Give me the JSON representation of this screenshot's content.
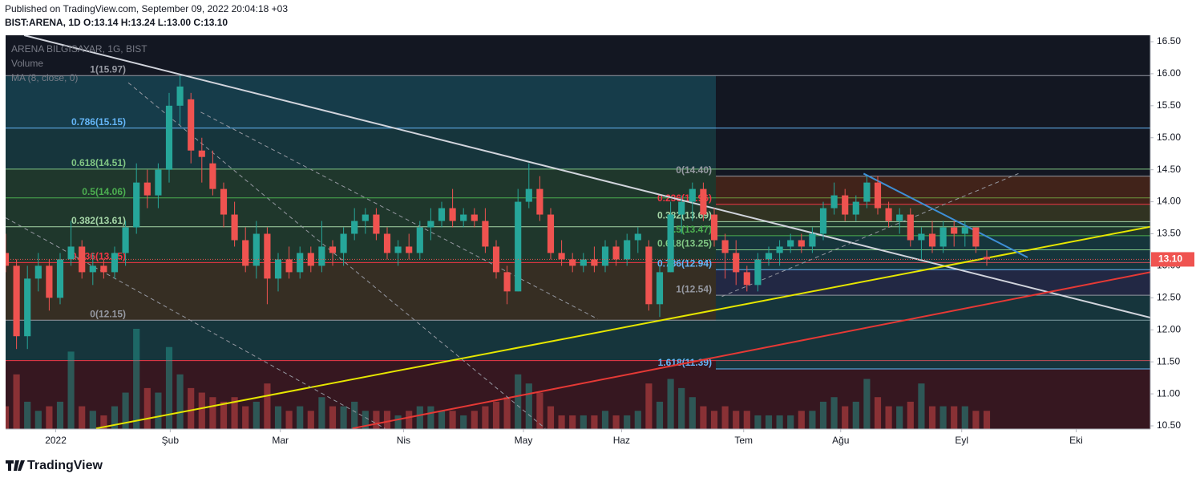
{
  "header": {
    "published": "Published on TradingView.com, September 09, 2022 20:04:18 +03",
    "symbol_line": "BIST:ARENA, 1D  O:13.14 H:13.24 L:13.00 C:13.10"
  },
  "footer": {
    "brand": "TradingView"
  },
  "chart_data": {
    "type": "candlestick",
    "legend": [
      "ARENA BILGISAYAR, 1G, BIST",
      "Volume",
      "MA (8, close, 0)"
    ],
    "open": [
      13.2,
      13.0,
      11.9,
      12.8,
      13.0,
      12.5,
      13.1,
      13.3,
      12.9,
      13.0,
      12.9,
      13.2,
      13.6,
      14.3,
      14.1,
      14.5,
      15.5,
      15.6,
      14.8,
      14.6,
      14.2,
      13.8,
      13.4,
      13.0,
      13.5,
      12.8,
      13.1,
      12.9,
      13.2,
      13.0,
      13.3,
      13.2,
      13.5,
      13.7,
      13.8,
      13.5,
      13.2,
      13.3,
      13.2,
      13.6,
      13.7,
      13.9,
      13.7,
      13.8,
      13.7,
      13.3,
      12.9,
      12.6,
      14.0,
      14.2,
      13.8,
      13.2,
      13.1,
      13.0,
      13.1,
      13.0,
      13.3,
      13.1,
      13.4,
      13.3,
      12.4,
      12.9,
      13.8,
      14.0,
      14.2,
      13.8,
      13.4,
      13.2,
      12.9,
      12.7,
      13.1,
      13.2,
      13.3,
      13.4,
      13.3,
      13.5,
      13.9,
      14.1,
      13.8,
      14.0,
      14.3,
      13.9,
      13.7,
      13.8,
      13.4,
      13.5,
      13.3,
      13.6,
      13.5,
      13.6,
      13.14
    ],
    "high": [
      13.5,
      13.1,
      13.0,
      13.2,
      13.1,
      13.2,
      13.7,
      13.4,
      13.2,
      13.1,
      13.3,
      13.7,
      14.6,
      14.5,
      14.6,
      15.7,
      15.97,
      15.7,
      15.0,
      14.8,
      14.3,
      14.0,
      13.6,
      13.7,
      13.6,
      13.2,
      13.3,
      13.3,
      13.3,
      13.7,
      13.4,
      13.6,
      13.9,
      13.9,
      13.9,
      13.6,
      13.4,
      13.5,
      13.7,
      13.9,
      14.0,
      14.2,
      13.9,
      13.9,
      13.9,
      13.4,
      13.0,
      14.2,
      14.6,
      14.4,
      13.9,
      13.4,
      13.2,
      13.2,
      13.3,
      13.4,
      13.4,
      13.5,
      13.6,
      13.4,
      13.0,
      14.0,
      14.1,
      14.3,
      14.3,
      13.9,
      13.5,
      13.4,
      13.0,
      13.2,
      13.3,
      13.4,
      13.5,
      13.5,
      13.6,
      14.0,
      14.3,
      14.2,
      14.1,
      14.4,
      14.4,
      14.0,
      13.9,
      13.9,
      13.6,
      13.7,
      13.7,
      13.7,
      13.7,
      13.6,
      13.24
    ],
    "low": [
      12.9,
      11.7,
      11.7,
      12.6,
      12.3,
      12.4,
      13.0,
      12.8,
      12.7,
      12.8,
      12.8,
      13.0,
      13.5,
      13.9,
      13.9,
      14.3,
      15.2,
      14.6,
      14.3,
      14.1,
      13.6,
      13.3,
      12.9,
      12.8,
      12.4,
      12.6,
      12.8,
      12.8,
      12.9,
      12.9,
      13.0,
      13.0,
      13.4,
      13.5,
      13.4,
      13.1,
      13.0,
      13.1,
      13.1,
      13.4,
      13.6,
      13.6,
      13.6,
      13.6,
      13.2,
      12.8,
      12.4,
      12.6,
      13.9,
      13.7,
      13.1,
      13.0,
      12.9,
      12.9,
      12.9,
      12.9,
      13.0,
      13.0,
      13.2,
      12.3,
      12.2,
      12.9,
      13.5,
      13.7,
      13.7,
      13.3,
      12.8,
      12.7,
      12.6,
      12.6,
      13.0,
      13.0,
      13.2,
      13.2,
      13.2,
      13.4,
      13.8,
      13.7,
      13.7,
      13.9,
      13.8,
      13.6,
      13.5,
      13.3,
      13.1,
      13.2,
      13.2,
      13.3,
      13.3,
      13.2,
      13.0
    ],
    "close": [
      13.0,
      11.9,
      12.8,
      13.0,
      12.5,
      13.1,
      13.3,
      12.9,
      13.0,
      12.9,
      13.2,
      13.6,
      14.3,
      14.1,
      14.5,
      15.5,
      15.8,
      14.8,
      14.7,
      14.2,
      13.8,
      13.4,
      13.0,
      13.5,
      12.8,
      13.1,
      12.9,
      13.2,
      13.0,
      13.3,
      13.2,
      13.5,
      13.7,
      13.8,
      13.5,
      13.2,
      13.3,
      13.2,
      13.6,
      13.7,
      13.9,
      13.7,
      13.8,
      13.7,
      13.3,
      12.9,
      12.6,
      14.0,
      14.2,
      13.8,
      13.2,
      13.1,
      13.0,
      13.1,
      13.0,
      13.3,
      13.1,
      13.4,
      13.5,
      12.4,
      12.9,
      13.8,
      14.0,
      14.2,
      13.8,
      13.4,
      13.2,
      12.9,
      12.7,
      13.1,
      13.2,
      13.3,
      13.4,
      13.3,
      13.5,
      13.9,
      14.1,
      13.8,
      14.0,
      14.3,
      13.9,
      13.7,
      13.8,
      13.4,
      13.5,
      13.3,
      13.6,
      13.5,
      13.6,
      13.3,
      13.1
    ],
    "volume": [
      25,
      60,
      30,
      20,
      25,
      30,
      85,
      25,
      20,
      15,
      25,
      40,
      110,
      45,
      40,
      90,
      60,
      45,
      40,
      35,
      30,
      35,
      25,
      30,
      50,
      25,
      20,
      25,
      20,
      35,
      25,
      25,
      30,
      20,
      20,
      20,
      15,
      20,
      25,
      25,
      20,
      20,
      15,
      20,
      25,
      30,
      35,
      60,
      50,
      40,
      25,
      15,
      15,
      15,
      15,
      20,
      15,
      15,
      20,
      50,
      30,
      55,
      45,
      35,
      25,
      20,
      25,
      20,
      20,
      15,
      15,
      15,
      15,
      20,
      20,
      30,
      35,
      25,
      30,
      55,
      35,
      25,
      25,
      30,
      50,
      25,
      25,
      25,
      25,
      20,
      20
    ],
    "up_color": "#26a69a",
    "down_color": "#ef5350",
    "last_price": {
      "value": 13.1,
      "label": "13.10"
    },
    "xlim": [
      0,
      105
    ],
    "xticks": [
      {
        "value": 4.6,
        "label": "2022"
      },
      {
        "value": 15.1,
        "label": "Şub"
      },
      {
        "value": 25.2,
        "label": "Mar"
      },
      {
        "value": 36.5,
        "label": "Nis"
      },
      {
        "value": 47.5,
        "label": "May"
      },
      {
        "value": 56.5,
        "label": "Haz"
      },
      {
        "value": 67.7,
        "label": "Tem"
      },
      {
        "value": 76.6,
        "label": "Ağu"
      },
      {
        "value": 87.7,
        "label": "Eyl"
      },
      {
        "value": 98.2,
        "label": "Eki"
      }
    ],
    "ylim": [
      10.45,
      16.6
    ],
    "yticks": [
      {
        "value": 10.5,
        "label": "10.50"
      },
      {
        "value": 11,
        "label": "11.00"
      },
      {
        "value": 11.5,
        "label": "11.50"
      },
      {
        "value": 12,
        "label": "12.00"
      },
      {
        "value": 12.5,
        "label": "12.50"
      },
      {
        "value": 13,
        "label": "13.00"
      },
      {
        "value": 13.5,
        "label": "13.50"
      },
      {
        "value": 14,
        "label": "14.00"
      },
      {
        "value": 14.5,
        "label": "14.50"
      },
      {
        "value": 15,
        "label": "15.00"
      },
      {
        "value": 15.5,
        "label": "15.50"
      },
      {
        "value": 16,
        "label": "16.00"
      },
      {
        "value": 16.5,
        "label": "16.50"
      }
    ],
    "fib_left": [
      {
        "value": 15.97,
        "label": "1(15.97)",
        "color": "#9598a1",
        "fill": "#26c6da"
      },
      {
        "value": 15.15,
        "label": "0.786(15.15)",
        "color": "#64b5f6",
        "fill": "#26a69a"
      },
      {
        "value": 14.51,
        "label": "0.618(14.51)",
        "color": "#81c784",
        "fill": "#4caf50"
      },
      {
        "value": 14.06,
        "label": "0.5(14.06)",
        "color": "#4caf50",
        "fill": "#4caf50"
      },
      {
        "value": 13.61,
        "label": "0.382(13.61)",
        "color": "#a5d6a7",
        "fill": "#4caf50"
      },
      {
        "value": 13.05,
        "label": "0.236(13.05)",
        "color": "#f23645",
        "fill": "#b8862b"
      },
      {
        "value": 12.15,
        "label": "0(12.15)",
        "color": "#9598a1",
        "fill": "#26a69a"
      },
      {
        "value": 11.52,
        "color": "#f23645",
        "fill": "#b71c1c"
      }
    ],
    "fib_right": [
      {
        "value": 14.4,
        "label": "0(14.40)",
        "color": "#9598a1",
        "fill": "#e65100"
      },
      {
        "value": 13.96,
        "label": "0.236(13.96)",
        "color": "#f23645",
        "fill": "#9e9d24"
      },
      {
        "value": 13.69,
        "label": "0.382(13.69)",
        "color": "#a5d6a7",
        "fill": "#4caf50"
      },
      {
        "value": 13.47,
        "label": "0.5(13.47)",
        "color": "#4caf50",
        "fill": "#26a69a"
      },
      {
        "value": 13.25,
        "label": "0.618(13.25)",
        "color": "#81c784",
        "fill": "#26a69a"
      },
      {
        "value": 12.94,
        "label": "0.786(12.94)",
        "color": "#64b5f6",
        "fill": "#5c6bc0"
      },
      {
        "value": 12.54,
        "label": "1(12.54)",
        "color": "#9598a1",
        "fill": "#26a69a"
      },
      {
        "value": 11.39,
        "label": "1.618(11.39)",
        "color": "#64b5f6",
        "fill": "#b71c1c"
      }
    ],
    "trendlines": [
      {
        "x": [
          1.7,
          105
        ],
        "y": [
          16.6,
          12.19
        ],
        "color": "#d1d4dc",
        "dashed": false
      },
      {
        "x": [
          8.3,
          105
        ],
        "y": [
          10.46,
          13.61
        ],
        "color": "#e6e600",
        "dashed": false
      },
      {
        "x": [
          31.8,
          105
        ],
        "y": [
          10.46,
          12.9
        ],
        "color": "#e53935",
        "dashed": false
      },
      {
        "x": [
          78.7,
          93.75
        ],
        "y": [
          14.44,
          13.13
        ],
        "color": "#3d8fd6",
        "dashed": false
      },
      {
        "x": [
          11.25,
          49.5
        ],
        "y": [
          15.86,
          10.46
        ],
        "color": "#9598a1",
        "dashed": true
      },
      {
        "x": [
          0,
          34.8
        ],
        "y": [
          13.75,
          10.46
        ],
        "color": "#9598a1",
        "dashed": true
      },
      {
        "x": [
          17.9,
          54.3
        ],
        "y": [
          15.4,
          12.17
        ],
        "color": "#9598a1",
        "dashed": true
      },
      {
        "x": [
          65.7,
          92.9
        ],
        "y": [
          12.52,
          14.44
        ],
        "color": "#9598a1",
        "dashed": true
      }
    ]
  }
}
